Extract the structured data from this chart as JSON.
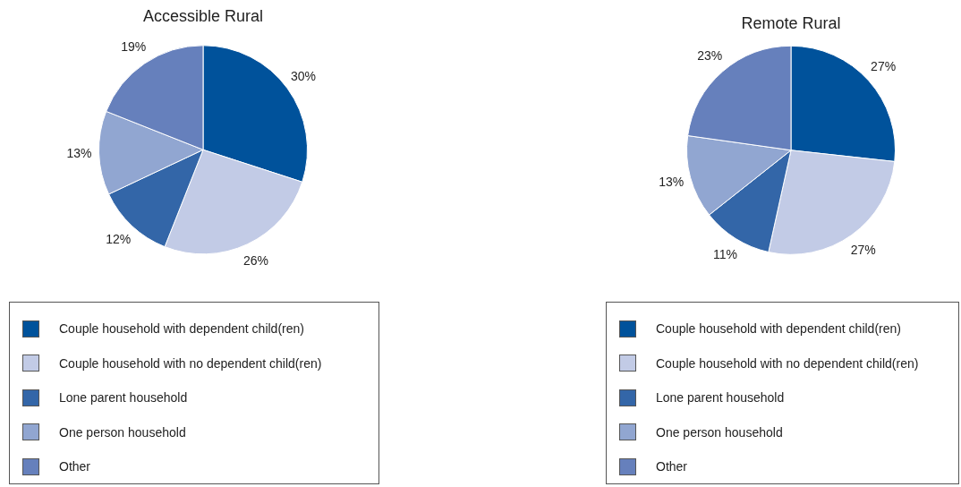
{
  "chart_data": [
    {
      "type": "pie",
      "title": "Accessible Rural",
      "categories": [
        "Couple household with dependent child(ren)",
        "Couple household with no dependent child(ren)",
        "Lone parent household",
        "One person household",
        "Other"
      ],
      "values": [
        30,
        26,
        12,
        13,
        19
      ],
      "value_labels": [
        "30%",
        "26%",
        "12%",
        "13%",
        "19%"
      ],
      "colors": [
        "#00529b",
        "#c2cbe6",
        "#3366a8",
        "#91a6d1",
        "#6680bc"
      ],
      "legend": "bottom"
    },
    {
      "type": "pie",
      "title": "Remote Rural",
      "categories": [
        "Couple household with dependent child(ren)",
        "Couple household with no dependent child(ren)",
        "Lone parent household",
        "One person household",
        "Other"
      ],
      "values": [
        27,
        27,
        11,
        13,
        23
      ],
      "value_labels": [
        "27%",
        "27%",
        "11%",
        "13%",
        "23%"
      ],
      "colors": [
        "#00529b",
        "#c2cbe6",
        "#3366a8",
        "#91a6d1",
        "#6680bc"
      ],
      "legend": "bottom"
    }
  ]
}
